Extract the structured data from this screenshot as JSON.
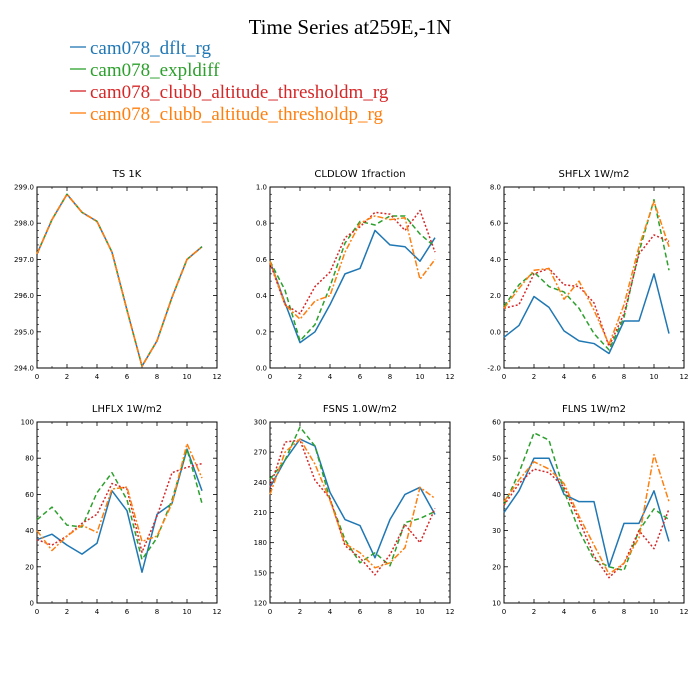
{
  "figure": {
    "title": "Time Series at259E,-1N",
    "legend": [
      {
        "name": "cam078_dflt_rg",
        "color": "#1f77b4",
        "dash": "solid"
      },
      {
        "name": "cam078_expldiff",
        "color": "#2ca02c",
        "dash": "dash"
      },
      {
        "name": "cam078_clubb_altitude_thresholdm_rg",
        "color": "#d62728",
        "dash": "dot"
      },
      {
        "name": "cam078_clubb_altitude_thresholdp_rg",
        "color": "#ff7f0e",
        "dash": "dashdot"
      }
    ]
  },
  "chart_data": [
    {
      "type": "line",
      "title": "TS  1K",
      "xlim": [
        0,
        12
      ],
      "ylim": [
        294,
        299
      ],
      "xticks": [
        0,
        2,
        4,
        6,
        8,
        10,
        12
      ],
      "yticks": [
        294,
        295,
        296,
        297,
        298,
        299
      ],
      "ytick_labels": [
        "294.0",
        "295.0",
        "296.0",
        "297.0",
        "298.0",
        "299.0"
      ],
      "x": [
        0,
        1,
        2,
        3,
        4,
        5,
        6,
        7,
        8,
        9,
        10,
        11
      ],
      "series": [
        {
          "name": "cam078_dflt_rg",
          "values": [
            297.15,
            298.1,
            298.8,
            298.3,
            298.05,
            297.2,
            295.6,
            294.05,
            294.75,
            295.95,
            297.0,
            297.35
          ]
        },
        {
          "name": "cam078_expldiff",
          "values": [
            297.15,
            298.1,
            298.8,
            298.3,
            298.05,
            297.2,
            295.6,
            294.05,
            294.75,
            295.95,
            297.0,
            297.35
          ]
        },
        {
          "name": "cam078_clubb_altitude_thresholdm_rg",
          "values": [
            297.15,
            298.1,
            298.8,
            298.3,
            298.05,
            297.2,
            295.6,
            294.05,
            294.75,
            295.95,
            297.0,
            297.35
          ]
        },
        {
          "name": "cam078_clubb_altitude_thresholdp_rg",
          "values": [
            297.15,
            298.1,
            298.8,
            298.3,
            298.05,
            297.2,
            295.6,
            294.05,
            294.75,
            295.95,
            297.0,
            297.35
          ]
        }
      ]
    },
    {
      "type": "line",
      "title": "CLDLOW   1fraction",
      "xlim": [
        0,
        12
      ],
      "ylim": [
        0,
        1
      ],
      "xticks": [
        0,
        2,
        4,
        6,
        8,
        10,
        12
      ],
      "yticks": [
        0,
        0.2,
        0.4,
        0.6,
        0.8,
        1.0
      ],
      "ytick_labels": [
        "0.0",
        "0.2",
        "0.4",
        "0.6",
        "0.8",
        "1.0"
      ],
      "x": [
        0,
        1,
        2,
        3,
        4,
        5,
        6,
        7,
        8,
        9,
        10,
        11
      ],
      "series": [
        {
          "name": "cam078_dflt_rg",
          "values": [
            0.59,
            0.36,
            0.14,
            0.2,
            0.35,
            0.52,
            0.55,
            0.76,
            0.68,
            0.67,
            0.59,
            0.72
          ]
        },
        {
          "name": "cam078_expldiff",
          "values": [
            0.59,
            0.43,
            0.15,
            0.24,
            0.45,
            0.69,
            0.81,
            0.79,
            0.84,
            0.84,
            0.74,
            0.67
          ]
        },
        {
          "name": "cam078_clubb_altitude_thresholdm_rg",
          "values": [
            0.58,
            0.35,
            0.3,
            0.45,
            0.53,
            0.72,
            0.78,
            0.86,
            0.85,
            0.76,
            0.87,
            0.64
          ]
        },
        {
          "name": "cam078_clubb_altitude_thresholdp_rg",
          "values": [
            0.59,
            0.35,
            0.27,
            0.37,
            0.4,
            0.64,
            0.8,
            0.84,
            0.82,
            0.83,
            0.49,
            0.6
          ]
        }
      ]
    },
    {
      "type": "line",
      "title": "SHFLX   1W/m2",
      "xlim": [
        0,
        12
      ],
      "ylim": [
        -2,
        8
      ],
      "xticks": [
        0,
        2,
        4,
        6,
        8,
        10,
        12
      ],
      "yticks": [
        -2,
        0,
        2,
        4,
        6,
        8
      ],
      "ytick_labels": [
        "-2.0",
        "0.0",
        "2.0",
        "4.0",
        "6.0",
        "8.0"
      ],
      "x": [
        0,
        1,
        2,
        3,
        4,
        5,
        6,
        7,
        8,
        9,
        10,
        11
      ],
      "series": [
        {
          "name": "cam078_dflt_rg",
          "values": [
            -0.3,
            0.35,
            1.95,
            1.35,
            0.05,
            -0.5,
            -0.65,
            -1.2,
            0.6,
            0.6,
            3.2,
            -0.1
          ]
        },
        {
          "name": "cam078_expldiff",
          "values": [
            1.4,
            2.6,
            3.3,
            2.5,
            2.2,
            1.3,
            -0.1,
            -1.0,
            0.8,
            4.4,
            7.3,
            3.4
          ]
        },
        {
          "name": "cam078_clubb_altitude_thresholdm_rg",
          "values": [
            1.3,
            1.5,
            3.2,
            3.5,
            2.6,
            2.5,
            1.6,
            -0.8,
            1.0,
            4.3,
            5.35,
            5.0
          ]
        },
        {
          "name": "cam078_clubb_altitude_thresholdp_rg",
          "values": [
            1.3,
            2.4,
            3.4,
            3.5,
            1.8,
            2.8,
            1.2,
            -0.7,
            1.5,
            4.7,
            7.2,
            4.7
          ]
        }
      ]
    },
    {
      "type": "line",
      "title": "LHFLX   1W/m2",
      "xlim": [
        0,
        12
      ],
      "ylim": [
        0,
        100
      ],
      "xticks": [
        0,
        2,
        4,
        6,
        8,
        10,
        12
      ],
      "yticks": [
        0,
        20,
        40,
        60,
        80,
        100
      ],
      "ytick_labels": [
        "0",
        "20",
        "40",
        "60",
        "80",
        "100"
      ],
      "x": [
        0,
        1,
        2,
        3,
        4,
        5,
        6,
        7,
        8,
        9,
        10,
        11
      ],
      "series": [
        {
          "name": "cam078_dflt_rg",
          "values": [
            35,
            38,
            32,
            27,
            33,
            62,
            51,
            17,
            49,
            55,
            85,
            62
          ]
        },
        {
          "name": "cam078_expldiff",
          "values": [
            46,
            53,
            43,
            42,
            61,
            72,
            57,
            24,
            36,
            57,
            85,
            55
          ]
        },
        {
          "name": "cam078_clubb_altitude_thresholdm_rg",
          "values": [
            35,
            32,
            37,
            44,
            49,
            66,
            63,
            28,
            48,
            72,
            75,
            77
          ]
        },
        {
          "name": "cam078_clubb_altitude_thresholdp_rg",
          "values": [
            40,
            29,
            37,
            43,
            39,
            63,
            64,
            34,
            37,
            55,
            88,
            69
          ]
        }
      ]
    },
    {
      "type": "line",
      "title": "FSNS   1.0W/m2",
      "xlim": [
        0,
        12
      ],
      "ylim": [
        120,
        300
      ],
      "xticks": [
        0,
        2,
        4,
        6,
        8,
        10,
        12
      ],
      "yticks": [
        120,
        150,
        180,
        210,
        240,
        270,
        300
      ],
      "ytick_labels": [
        "120",
        "150",
        "180",
        "210",
        "240",
        "270",
        "300"
      ],
      "x": [
        0,
        1,
        2,
        3,
        4,
        5,
        6,
        7,
        8,
        9,
        10,
        11
      ],
      "series": [
        {
          "name": "cam078_dflt_rg",
          "values": [
            235,
            262,
            283,
            276,
            230,
            203,
            197,
            165,
            203,
            228,
            235,
            208
          ]
        },
        {
          "name": "cam078_expldiff",
          "values": [
            243,
            262,
            295,
            276,
            223,
            183,
            160,
            170,
            157,
            200,
            204,
            211
          ]
        },
        {
          "name": "cam078_clubb_altitude_thresholdm_rg",
          "values": [
            235,
            280,
            282,
            242,
            224,
            177,
            165,
            148,
            168,
            198,
            180,
            214
          ]
        },
        {
          "name": "cam078_clubb_altitude_thresholdp_rg",
          "values": [
            228,
            270,
            283,
            258,
            222,
            179,
            170,
            155,
            160,
            175,
            235,
            224
          ]
        }
      ]
    },
    {
      "type": "line",
      "title": "FLNS   1W/m2",
      "xlim": [
        0,
        12
      ],
      "ylim": [
        10,
        60
      ],
      "xticks": [
        0,
        2,
        4,
        6,
        8,
        10,
        12
      ],
      "yticks": [
        10,
        20,
        30,
        40,
        50,
        60
      ],
      "ytick_labels": [
        "10",
        "20",
        "30",
        "40",
        "50",
        "60"
      ],
      "x": [
        0,
        1,
        2,
        3,
        4,
        5,
        6,
        7,
        8,
        9,
        10,
        11
      ],
      "series": [
        {
          "name": "cam078_dflt_rg",
          "values": [
            35,
            41,
            50,
            50,
            40,
            38,
            38,
            20,
            32,
            32,
            41,
            27
          ]
        },
        {
          "name": "cam078_expldiff",
          "values": [
            37,
            46,
            57,
            55,
            41,
            30,
            22,
            20,
            19,
            30,
            36,
            33
          ]
        },
        {
          "name": "cam078_clubb_altitude_thresholdm_rg",
          "values": [
            37,
            43,
            47,
            46,
            42,
            33,
            23,
            17,
            21,
            30,
            25,
            36
          ]
        },
        {
          "name": "cam078_clubb_altitude_thresholdp_rg",
          "values": [
            38,
            44,
            49,
            47,
            43,
            34,
            26,
            18,
            21,
            28,
            51,
            38
          ]
        }
      ]
    }
  ]
}
